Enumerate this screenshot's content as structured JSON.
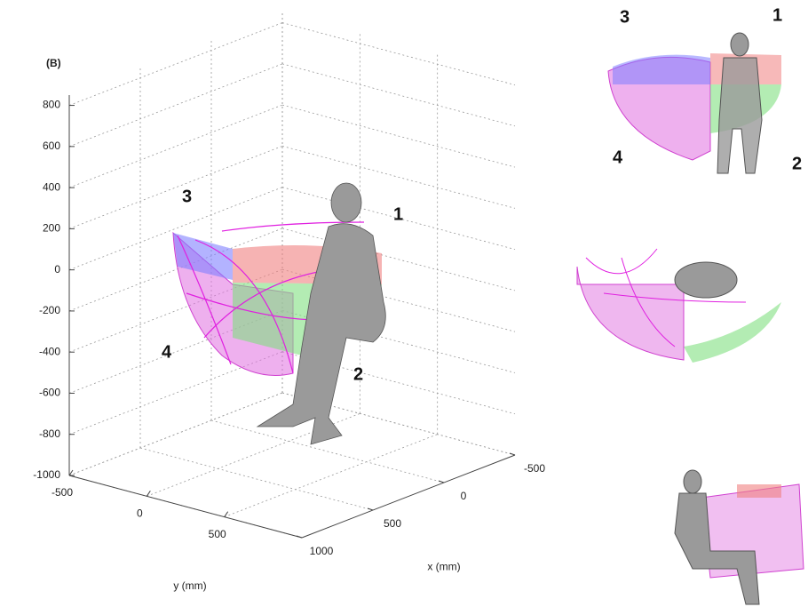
{
  "chart_data": {
    "type": "surface3d",
    "panel_label": "(B)",
    "xlabel": "x (mm)",
    "ylabel": "y (mm)",
    "xlim": [
      1000,
      -500
    ],
    "ylim": [
      -500,
      1000
    ],
    "zlim": [
      -1000,
      850
    ],
    "xticks": [
      1000,
      500,
      0,
      -500
    ],
    "yticks": [
      -500,
      0,
      500
    ],
    "zticks": [
      800,
      600,
      400,
      200,
      0,
      -200,
      -400,
      -600,
      -800,
      -1000
    ],
    "grid": true,
    "annotations": [
      "1",
      "2",
      "3",
      "4"
    ]
  },
  "insets": [
    {
      "annotations": [
        "3",
        "1",
        "4",
        "2"
      ]
    }
  ]
}
